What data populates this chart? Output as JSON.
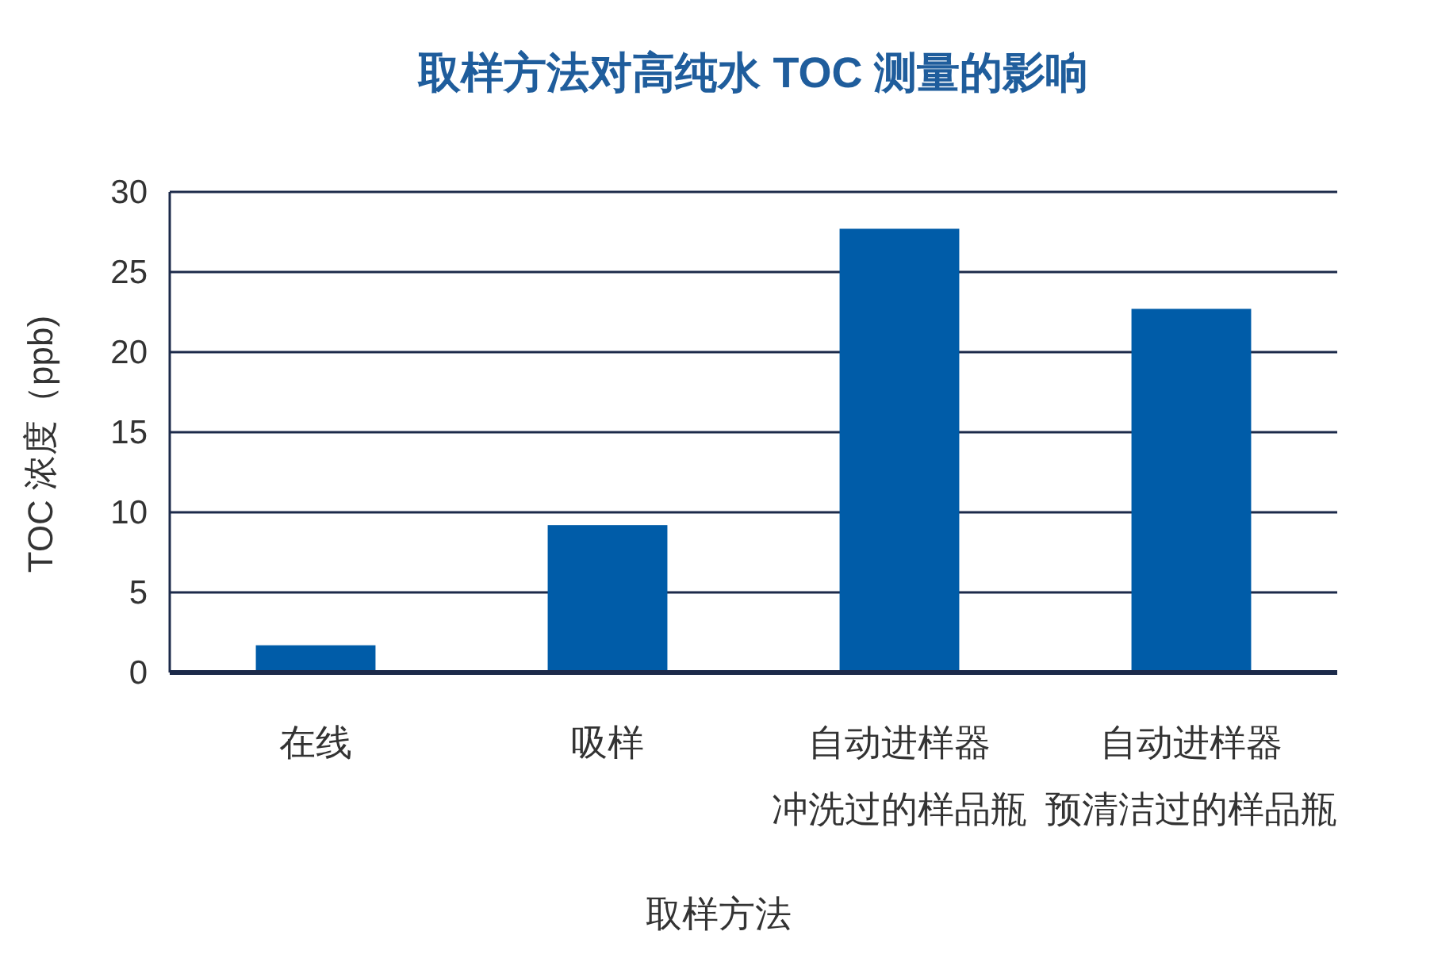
{
  "chart_data": {
    "type": "bar",
    "title": "取样方法对高纯水 TOC 测量的影响",
    "xlabel": "取样方法",
    "ylabel": "TOC 浓度（ppb)",
    "categories": [
      "在线",
      "吸样",
      "自动进样器冲洗过的样品瓶",
      "自动进样器预清洁过的样品瓶"
    ],
    "values": [
      1.7,
      9.2,
      27.7,
      22.7
    ],
    "color": "#005ca8",
    "ylim": [
      0,
      30
    ],
    "yticks": [
      0,
      5,
      10,
      15,
      20,
      25,
      30
    ],
    "grid": "y"
  }
}
